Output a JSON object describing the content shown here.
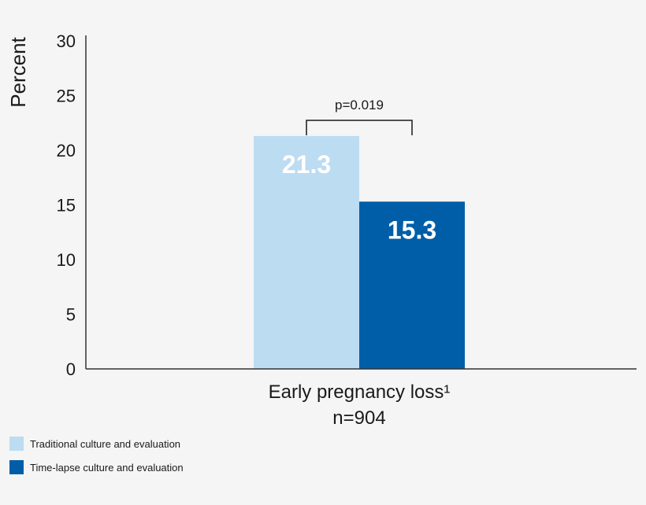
{
  "chart_data": {
    "type": "bar",
    "categories": [
      "Early pregnancy loss¹"
    ],
    "category_sublabels": [
      "n=904"
    ],
    "series": [
      {
        "name": "Traditional culture and evaluation",
        "values": [
          21.3
        ],
        "color": "#bcdcf2"
      },
      {
        "name": "Time-lapse culture and evaluation",
        "values": [
          15.3
        ],
        "color": "#005ea8"
      }
    ],
    "data_labels": [
      "21.3",
      "15.3"
    ],
    "ylabel": "Percent",
    "xlabel": "",
    "ylim": [
      0,
      30
    ],
    "yticks": [
      0,
      5,
      10,
      15,
      20,
      25,
      30
    ],
    "grid": false,
    "legend_position": "bottom-left",
    "annotation": {
      "text": "p=0.019",
      "type": "bracket"
    }
  }
}
